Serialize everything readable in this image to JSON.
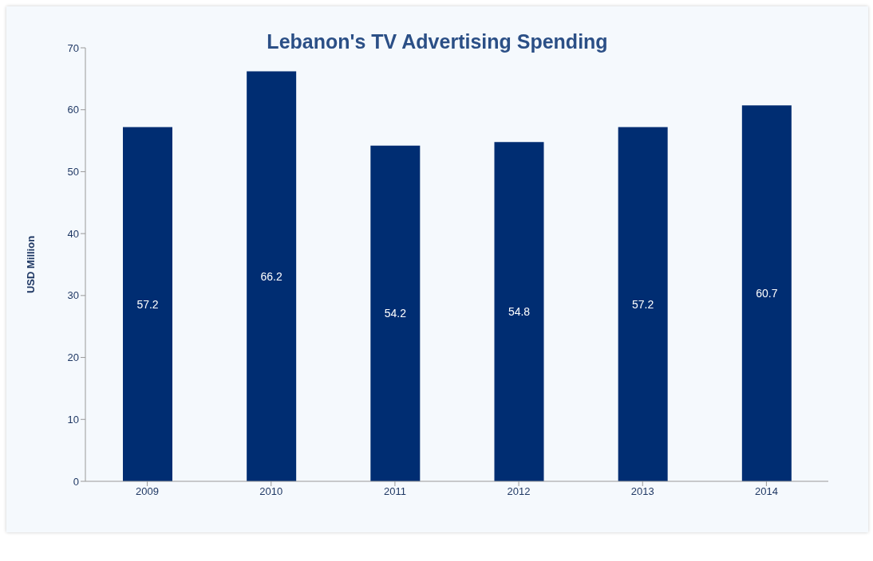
{
  "chart_data": {
    "type": "bar",
    "title": "Lebanon's TV Advertising Spending",
    "ylabel": "USD Million",
    "categories": [
      "2009",
      "2010",
      "2011",
      "2012",
      "2013",
      "2014"
    ],
    "values": [
      57.2,
      66.2,
      54.2,
      54.8,
      57.2,
      60.7
    ],
    "color": "#002d72",
    "ylim": [
      0,
      70
    ],
    "yticks": [
      0,
      10,
      20,
      30,
      40,
      50,
      60,
      70
    ],
    "grid": false,
    "data_labels": true
  }
}
